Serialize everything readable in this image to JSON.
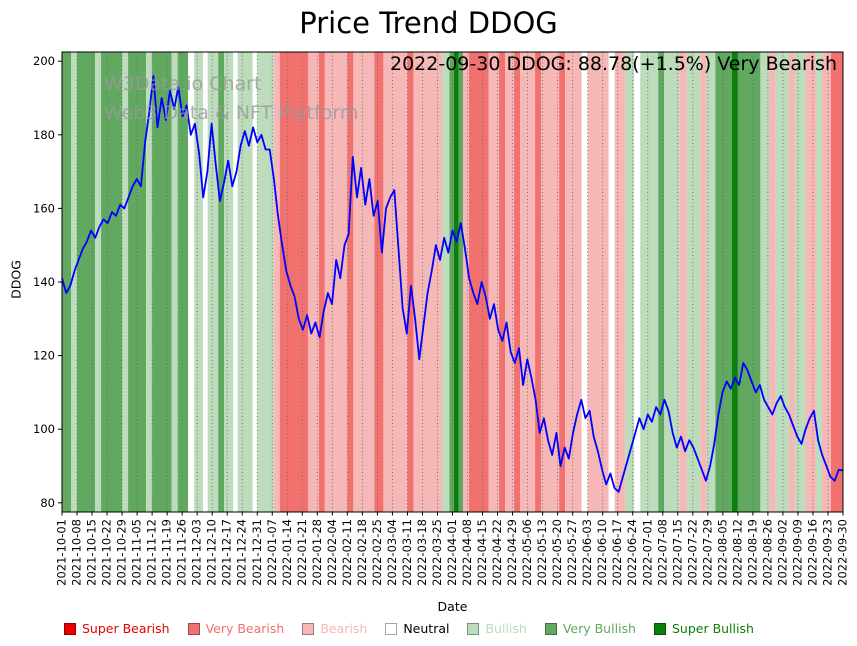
{
  "title": "Price Trend DDOG",
  "annotation": "2022-09-30 DDOG: 88.78(+1.5%) Very Bearish",
  "watermark": {
    "line1": "W3Data.io Chart",
    "line2": "Web3 Data & NFT Platform"
  },
  "chart_data": {
    "type": "line",
    "title": "Price Trend DDOG",
    "xlabel": "Date",
    "ylabel": "DDOG",
    "ylim": [
      77.5,
      202.5
    ],
    "yticks": [
      80,
      100,
      120,
      140,
      160,
      180,
      200
    ],
    "grid": "vertical-dotted",
    "legend_position": "bottom",
    "x_range_weeks": 52,
    "x_tick_labels": [
      "2021-10-01",
      "2021-10-08",
      "2021-10-15",
      "2021-10-22",
      "2021-10-29",
      "2021-11-05",
      "2021-11-12",
      "2021-11-19",
      "2021-11-26",
      "2021-12-03",
      "2021-12-10",
      "2021-12-17",
      "2021-12-24",
      "2021-12-31",
      "2022-01-07",
      "2022-01-14",
      "2022-01-21",
      "2022-01-28",
      "2022-02-04",
      "2022-02-11",
      "2022-02-18",
      "2022-02-25",
      "2022-03-04",
      "2022-03-11",
      "2022-03-18",
      "2022-03-25",
      "2022-04-01",
      "2022-04-08",
      "2022-04-15",
      "2022-04-22",
      "2022-04-29",
      "2022-05-06",
      "2022-05-13",
      "2022-05-20",
      "2022-05-27",
      "2022-06-03",
      "2022-06-10",
      "2022-06-17",
      "2022-06-24",
      "2022-07-01",
      "2022-07-08",
      "2022-07-15",
      "2022-07-22",
      "2022-07-29",
      "2022-08-05",
      "2022-08-12",
      "2022-08-19",
      "2022-08-26",
      "2022-09-02",
      "2022-09-09",
      "2022-09-16",
      "2022-09-23",
      "2022-09-30"
    ],
    "series": [
      {
        "name": "DDOG",
        "color": "#0000ff",
        "values": [
          141,
          137,
          139,
          143,
          146,
          149,
          151,
          154,
          152,
          155,
          157,
          156,
          159,
          158,
          161,
          160,
          163,
          166,
          168,
          166,
          178,
          186,
          196,
          182,
          190,
          184,
          192,
          187,
          193,
          185,
          188,
          180,
          183,
          175,
          163,
          170,
          183,
          172,
          162,
          167,
          173,
          166,
          170,
          177,
          181,
          177,
          182,
          178,
          180,
          176,
          176,
          168,
          158,
          150,
          143,
          139,
          136,
          130,
          127,
          131,
          126,
          129,
          125,
          132,
          137,
          134,
          146,
          141,
          150,
          153,
          174,
          163,
          171,
          161,
          168,
          158,
          162,
          148,
          160,
          163,
          165,
          149,
          133,
          126,
          139,
          130,
          119,
          128,
          137,
          143,
          150,
          146,
          152,
          148,
          154,
          151,
          156,
          149,
          141,
          137,
          134,
          140,
          136,
          130,
          134,
          127,
          124,
          129,
          121,
          118,
          122,
          112,
          119,
          114,
          108,
          99,
          103,
          97,
          93,
          99,
          90,
          95,
          92,
          99,
          104,
          108,
          103,
          105,
          98,
          94,
          89,
          85,
          88,
          84,
          83,
          87,
          91,
          95,
          99,
          103,
          100,
          104,
          102,
          106,
          104,
          108,
          105,
          99,
          95,
          98,
          94,
          97,
          95,
          92,
          89,
          86,
          90,
          96,
          104,
          110,
          113,
          111,
          114,
          112,
          118,
          116,
          113,
          110,
          112,
          108,
          106,
          104,
          107,
          109,
          106,
          104,
          101,
          98,
          96,
          100,
          103,
          105,
          97,
          93,
          90,
          87,
          86,
          89,
          88.78
        ]
      }
    ],
    "sentiment_colors": {
      "super_bearish": "#e60000",
      "very_bearish": "#f1716e",
      "bearish": "#f6b8b6",
      "neutral": "#ffffff",
      "bullish": "#bcdcbc",
      "very_bullish": "#61a861",
      "super_bullish": "#0a800a"
    },
    "sentiment_bands": [
      [
        0,
        0.6,
        "very_bullish"
      ],
      [
        0.6,
        1.0,
        "bullish"
      ],
      [
        1.0,
        2.2,
        "very_bullish"
      ],
      [
        2.2,
        2.6,
        "bullish"
      ],
      [
        2.6,
        4.0,
        "very_bullish"
      ],
      [
        4.0,
        4.4,
        "bullish"
      ],
      [
        4.4,
        5.6,
        "very_bullish"
      ],
      [
        5.6,
        6.0,
        "bullish"
      ],
      [
        6.0,
        7.3,
        "very_bullish"
      ],
      [
        7.3,
        7.7,
        "bullish"
      ],
      [
        7.7,
        8.4,
        "very_bullish"
      ],
      [
        8.4,
        8.8,
        "neutral"
      ],
      [
        8.8,
        9.4,
        "bullish"
      ],
      [
        9.4,
        9.7,
        "neutral"
      ],
      [
        9.7,
        10.4,
        "bullish"
      ],
      [
        10.4,
        10.8,
        "very_bullish"
      ],
      [
        10.8,
        11.4,
        "bullish"
      ],
      [
        11.4,
        11.7,
        "neutral"
      ],
      [
        11.7,
        12.7,
        "bullish"
      ],
      [
        12.7,
        13.0,
        "neutral"
      ],
      [
        13.0,
        14.1,
        "bullish"
      ],
      [
        14.1,
        14.5,
        "bearish"
      ],
      [
        14.5,
        16.4,
        "very_bearish"
      ],
      [
        16.4,
        17.1,
        "bearish"
      ],
      [
        17.1,
        17.5,
        "very_bearish"
      ],
      [
        17.5,
        19.0,
        "bearish"
      ],
      [
        19.0,
        19.4,
        "very_bearish"
      ],
      [
        19.4,
        20.8,
        "bearish"
      ],
      [
        20.8,
        21.4,
        "very_bearish"
      ],
      [
        21.4,
        23.0,
        "bearish"
      ],
      [
        23.0,
        23.4,
        "very_bearish"
      ],
      [
        23.4,
        25.3,
        "bearish"
      ],
      [
        25.3,
        25.8,
        "bullish"
      ],
      [
        25.8,
        26.1,
        "very_bullish"
      ],
      [
        26.1,
        26.4,
        "super_bullish"
      ],
      [
        26.4,
        26.7,
        "very_bullish"
      ],
      [
        26.7,
        27.1,
        "bearish"
      ],
      [
        27.1,
        28.4,
        "very_bearish"
      ],
      [
        28.4,
        29.1,
        "bearish"
      ],
      [
        29.1,
        29.5,
        "very_bearish"
      ],
      [
        29.5,
        30.1,
        "bearish"
      ],
      [
        30.1,
        30.5,
        "very_bearish"
      ],
      [
        30.5,
        31.5,
        "bearish"
      ],
      [
        31.5,
        31.9,
        "very_bearish"
      ],
      [
        31.9,
        33.1,
        "bearish"
      ],
      [
        33.1,
        33.5,
        "very_bearish"
      ],
      [
        33.5,
        34.6,
        "bearish"
      ],
      [
        34.6,
        35.0,
        "neutral"
      ],
      [
        35.0,
        36.4,
        "bearish"
      ],
      [
        36.4,
        36.8,
        "neutral"
      ],
      [
        36.8,
        37.5,
        "bearish"
      ],
      [
        37.5,
        38.1,
        "bullish"
      ],
      [
        38.1,
        38.5,
        "neutral"
      ],
      [
        38.5,
        39.7,
        "bullish"
      ],
      [
        39.7,
        40.1,
        "very_bullish"
      ],
      [
        40.1,
        41.1,
        "bullish"
      ],
      [
        41.1,
        41.6,
        "bearish"
      ],
      [
        41.6,
        42.5,
        "bullish"
      ],
      [
        42.5,
        42.9,
        "bearish"
      ],
      [
        42.9,
        43.5,
        "bullish"
      ],
      [
        43.5,
        44.6,
        "very_bullish"
      ],
      [
        44.6,
        45.0,
        "super_bullish"
      ],
      [
        45.0,
        46.5,
        "very_bullish"
      ],
      [
        46.5,
        47.1,
        "bullish"
      ],
      [
        47.1,
        47.5,
        "bearish"
      ],
      [
        47.5,
        48.4,
        "bullish"
      ],
      [
        48.4,
        48.8,
        "bearish"
      ],
      [
        48.8,
        49.5,
        "bullish"
      ],
      [
        49.5,
        50.2,
        "bearish"
      ],
      [
        50.2,
        50.6,
        "bullish"
      ],
      [
        50.6,
        51.2,
        "bearish"
      ],
      [
        51.2,
        52.0,
        "very_bearish"
      ]
    ]
  },
  "legend": {
    "items": [
      {
        "label": "Super Bearish",
        "color": "#e60000",
        "text_color": "#e60000"
      },
      {
        "label": "Very Bearish",
        "color": "#f1716e",
        "text_color": "#f1716e"
      },
      {
        "label": "Bearish",
        "color": "#f6b8b6",
        "text_color": "#f6b8b6"
      },
      {
        "label": "Neutral",
        "color": "#ffffff",
        "text_color": "#000000"
      },
      {
        "label": "Bullish",
        "color": "#bcdcbc",
        "text_color": "#bcdcbc"
      },
      {
        "label": "Very Bullish",
        "color": "#61a861",
        "text_color": "#61a861"
      },
      {
        "label": "Super Bullish",
        "color": "#0a800a",
        "text_color": "#0a800a"
      }
    ]
  }
}
